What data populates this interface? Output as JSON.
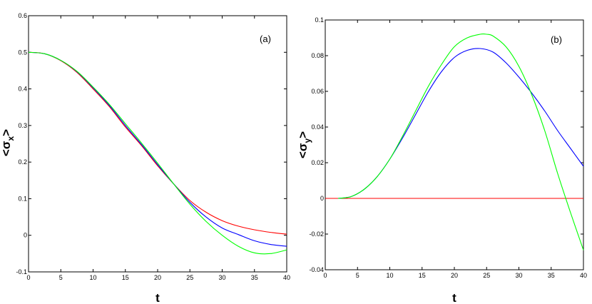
{
  "chart_data": [
    {
      "type": "line",
      "panel_label": "(a)",
      "xlabel": "t",
      "ylabel_base": "<σ",
      "ylabel_sub": "x",
      "ylabel_close": ">",
      "xlim": [
        0,
        40
      ],
      "ylim": [
        -0.1,
        0.6
      ],
      "xticks": [
        "0",
        "5",
        "10",
        "15",
        "20",
        "25",
        "30",
        "35",
        "40"
      ],
      "yticks": [
        "-0.1",
        "0",
        "0.1",
        "0.2",
        "0.3",
        "0.4",
        "0.5",
        "0.6"
      ],
      "grid": false,
      "series": [
        {
          "color": "#ff0000",
          "x": [
            0,
            2.5,
            5,
            7.5,
            10,
            12.5,
            15,
            17.5,
            20,
            22.5,
            25,
            27.5,
            30,
            32.5,
            35,
            37.5,
            40
          ],
          "y": [
            0.5,
            0.496,
            0.477,
            0.445,
            0.4,
            0.352,
            0.296,
            0.245,
            0.19,
            0.14,
            0.095,
            0.063,
            0.04,
            0.025,
            0.015,
            0.008,
            0.003
          ]
        },
        {
          "color": "#0000ff",
          "x": [
            0,
            2.5,
            5,
            7.5,
            10,
            12.5,
            15,
            17.5,
            20,
            22.5,
            25,
            27.5,
            30,
            32.5,
            35,
            37.5,
            40
          ],
          "y": [
            0.5,
            0.496,
            0.478,
            0.447,
            0.403,
            0.355,
            0.3,
            0.248,
            0.193,
            0.14,
            0.09,
            0.05,
            0.02,
            0.002,
            -0.015,
            -0.025,
            -0.03
          ]
        },
        {
          "color": "#00ff00",
          "x": [
            0,
            2.5,
            5,
            7.5,
            10,
            12.5,
            15,
            17.5,
            20,
            22.5,
            25,
            27.5,
            30,
            32.5,
            35,
            37.5,
            40
          ],
          "y": [
            0.5,
            0.496,
            0.478,
            0.448,
            0.405,
            0.358,
            0.305,
            0.252,
            0.197,
            0.14,
            0.085,
            0.038,
            0.0,
            -0.03,
            -0.048,
            -0.05,
            -0.04
          ]
        }
      ]
    },
    {
      "type": "line",
      "panel_label": "(b)",
      "xlabel": "t",
      "ylabel_base": "<σ",
      "ylabel_sub": "y",
      "ylabel_close": ">",
      "xlim": [
        0,
        40
      ],
      "ylim": [
        -0.04,
        0.1
      ],
      "xticks": [
        "0",
        "5",
        "10",
        "15",
        "20",
        "25",
        "30",
        "35",
        "40"
      ],
      "yticks": [
        "-0.04",
        "-0.02",
        "0",
        "0.02",
        "0.04",
        "0.06",
        "0.08",
        "0.1"
      ],
      "grid": false,
      "series": [
        {
          "color": "#ff0000",
          "x": [
            0,
            40
          ],
          "y": [
            0,
            0
          ]
        },
        {
          "color": "#0000ff",
          "x": [
            2,
            4,
            6,
            8,
            10,
            12,
            14,
            16,
            18,
            20,
            22,
            24,
            26,
            28,
            30,
            32,
            34,
            36,
            38,
            40
          ],
          "y": [
            0.0,
            0.001,
            0.005,
            0.012,
            0.022,
            0.034,
            0.047,
            0.06,
            0.071,
            0.079,
            0.083,
            0.084,
            0.082,
            0.076,
            0.068,
            0.059,
            0.049,
            0.038,
            0.028,
            0.018
          ]
        },
        {
          "color": "#00ff00",
          "x": [
            2,
            4,
            6,
            8,
            10,
            12,
            14,
            16,
            18,
            20,
            22,
            24,
            25,
            26,
            28,
            30,
            32,
            34,
            36,
            38,
            40
          ],
          "y": [
            0.0,
            0.001,
            0.005,
            0.012,
            0.022,
            0.035,
            0.049,
            0.063,
            0.075,
            0.085,
            0.09,
            0.092,
            0.092,
            0.091,
            0.085,
            0.074,
            0.058,
            0.038,
            0.014,
            -0.008,
            -0.029
          ]
        }
      ]
    }
  ]
}
